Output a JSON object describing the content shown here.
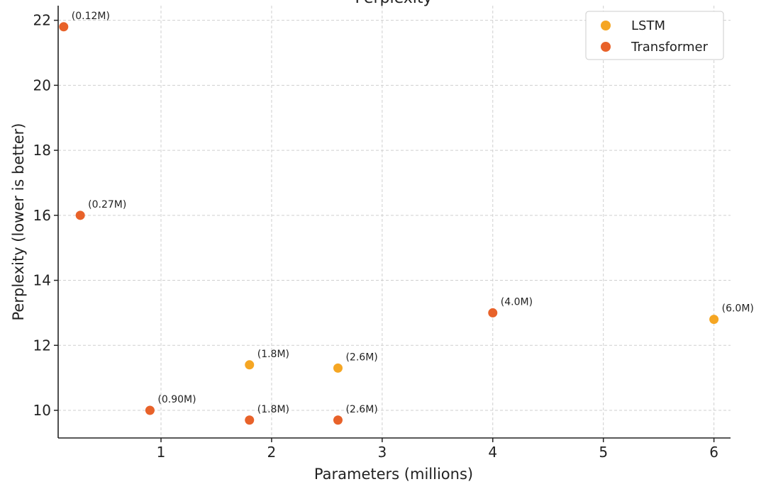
{
  "chart_data": {
    "type": "scatter",
    "title": "Perplexity",
    "xlabel": "Parameters (millions)",
    "ylabel": "Perplexity (lower is better)",
    "xlim": [
      0.07,
      6.15
    ],
    "ylim": [
      9.15,
      22.45
    ],
    "xticks": [
      1,
      2,
      3,
      4,
      5,
      6
    ],
    "yticks": [
      10,
      12,
      14,
      16,
      18,
      20,
      22
    ],
    "grid": true,
    "legend_position": "top-right",
    "series": [
      {
        "name": "LSTM",
        "color": "#f5a623",
        "points": [
          {
            "x": 1.8,
            "y": 11.4,
            "label": "(1.8M)"
          },
          {
            "x": 2.6,
            "y": 11.3,
            "label": "(2.6M)"
          },
          {
            "x": 6.0,
            "y": 12.8,
            "label": "(6.0M)"
          }
        ]
      },
      {
        "name": "Transformer",
        "color": "#e8622a",
        "points": [
          {
            "x": 0.12,
            "y": 21.8,
            "label": "(0.12M)"
          },
          {
            "x": 0.27,
            "y": 16.0,
            "label": "(0.27M)"
          },
          {
            "x": 0.9,
            "y": 10.0,
            "label": "(0.90M)"
          },
          {
            "x": 1.8,
            "y": 9.7,
            "label": "(1.8M)"
          },
          {
            "x": 2.6,
            "y": 9.7,
            "label": "(2.6M)"
          },
          {
            "x": 4.0,
            "y": 13.0,
            "label": "(4.0M)"
          }
        ]
      }
    ]
  }
}
